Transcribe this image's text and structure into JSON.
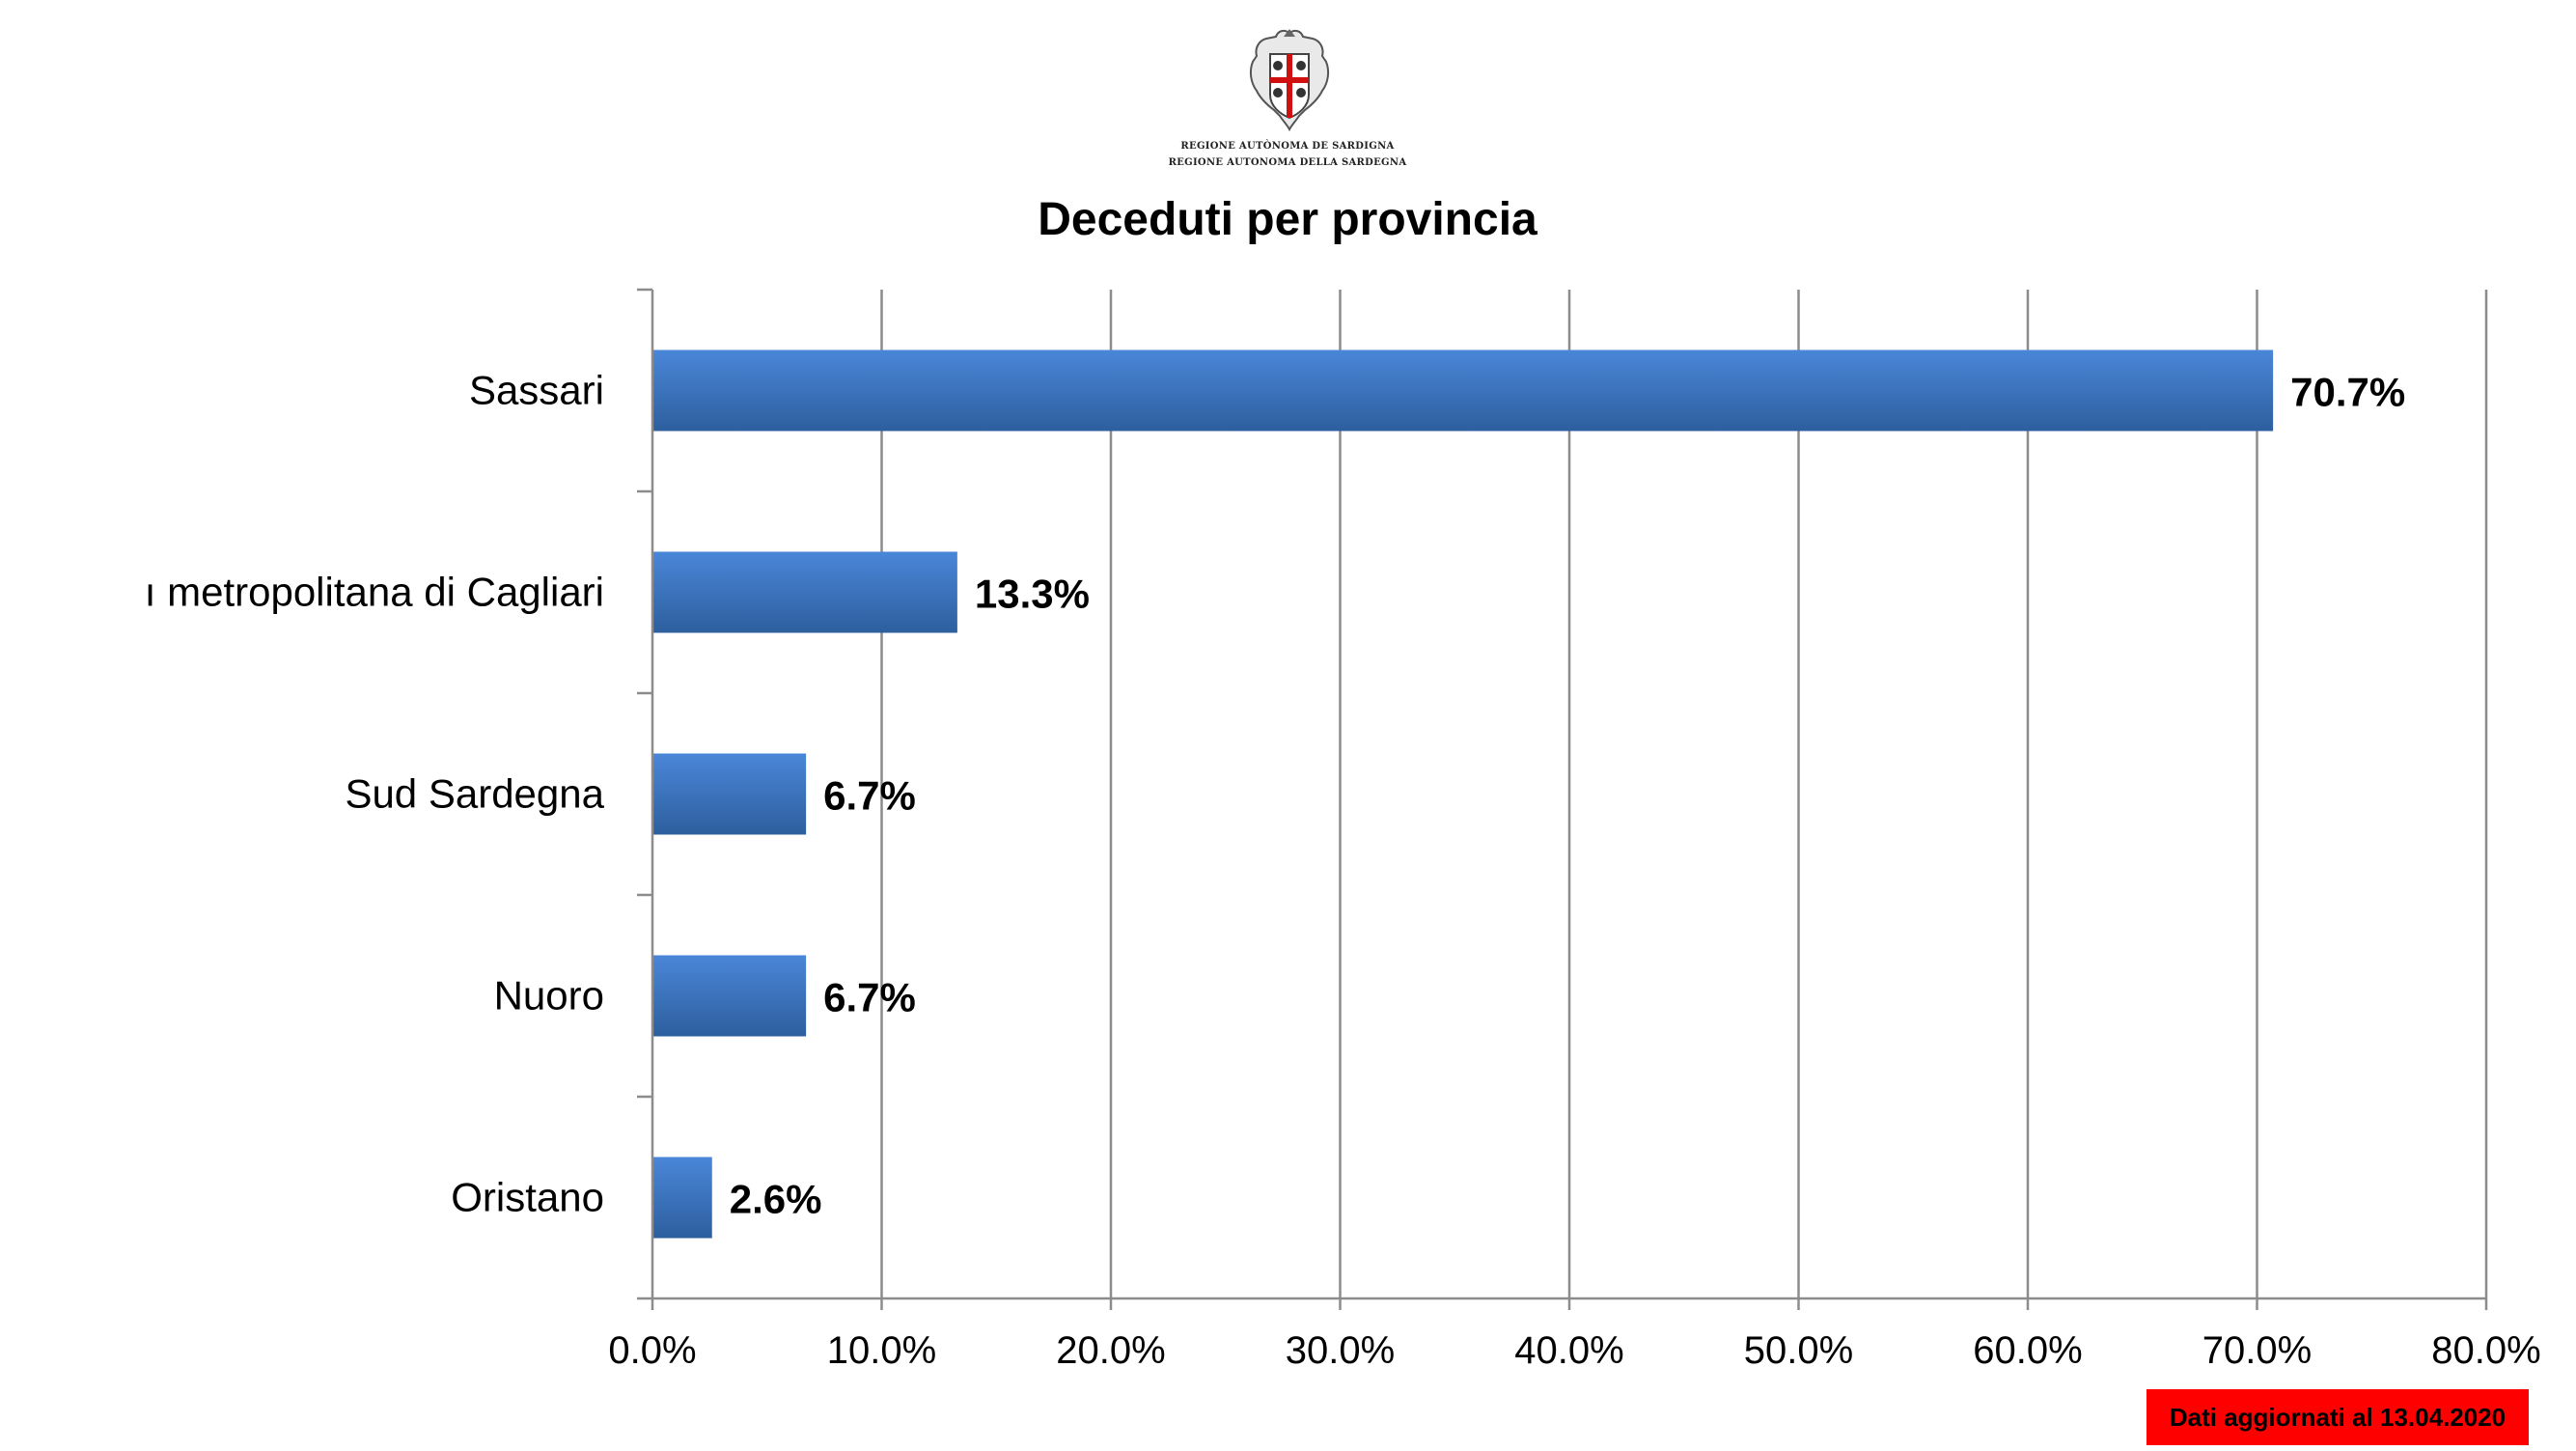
{
  "header": {
    "logo_text_line_1": "REGIONE AUTÒNOMA DE SARDIGNA",
    "logo_text_line_2": "REGIONE AUTONOMA DELLA SARDEGNA"
  },
  "badge": {
    "text": "Dati aggiornati al 13.04.2020"
  },
  "colors": {
    "bar": "#3a73c3",
    "badge": "#ff0000"
  },
  "chart_data": {
    "type": "bar",
    "orientation": "horizontal",
    "title": "Deceduti per provincia",
    "xlabel": "",
    "ylabel": "",
    "categories": [
      "Sassari",
      "Città metropolitana di Cagliari",
      "Sud Sardegna",
      "Nuoro",
      "Oristano"
    ],
    "category_labels_shown": [
      "Sassari",
      "ı metropolitana di Cagliari",
      "Sud Sardegna",
      "Nuoro",
      "Oristano"
    ],
    "values": [
      70.7,
      13.3,
      6.7,
      6.7,
      2.6
    ],
    "data_labels": [
      "70.7%",
      "13.3%",
      "6.7%",
      "6.7%",
      "2.6%"
    ],
    "xlim": [
      0,
      80
    ],
    "xticks": [
      0,
      10,
      20,
      30,
      40,
      50,
      60,
      70,
      80
    ],
    "xtick_labels": [
      "0.0%",
      "10.0%",
      "20.0%",
      "30.0%",
      "40.0%",
      "50.0%",
      "60.0%",
      "70.0%",
      "80.0%"
    ],
    "grid": "vertical",
    "legend": "none"
  }
}
